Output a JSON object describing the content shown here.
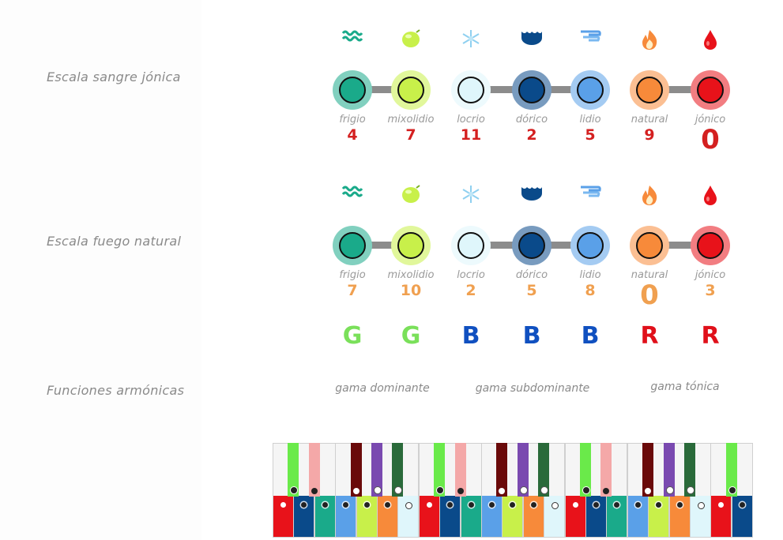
{
  "rows": [
    {
      "label": "Escala sangre jónica"
    },
    {
      "label": "Escala fuego natural"
    },
    {
      "label": "Funciones armónicas"
    }
  ],
  "modes": [
    {
      "name": "frigio",
      "icon": "water-waves-icon",
      "color": "#1aaa8a"
    },
    {
      "name": "mixolidio",
      "icon": "lime-icon",
      "color": "#c8f04a"
    },
    {
      "name": "locrio",
      "icon": "snowflake-icon",
      "color": "#dff6fb"
    },
    {
      "name": "dórico",
      "icon": "sea-icon",
      "color": "#0a4a8a"
    },
    {
      "name": "lidio",
      "icon": "wind-icon",
      "color": "#5aa0e8"
    },
    {
      "name": "natural",
      "icon": "fire-icon",
      "color": "#f78a3a"
    },
    {
      "name": "jónico",
      "icon": "blood-drop-icon",
      "color": "#e8121a"
    }
  ],
  "scale1": {
    "numbers": [
      "4",
      "7",
      "11",
      "2",
      "5",
      "9",
      "0"
    ],
    "number_color": "#d42020",
    "highlight_index": 6
  },
  "scale2": {
    "numbers": [
      "7",
      "10",
      "2",
      "5",
      "8",
      "0",
      "3"
    ],
    "number_color": "#f0a050",
    "highlight_index": 5
  },
  "letters": [
    {
      "text": "G",
      "color": "#7ae05a"
    },
    {
      "text": "G",
      "color": "#7ae05a"
    },
    {
      "text": "B",
      "color": "#1050c0"
    },
    {
      "text": "B",
      "color": "#1050c0"
    },
    {
      "text": "B",
      "color": "#1050c0"
    },
    {
      "text": "R",
      "color": "#e0101a"
    },
    {
      "text": "R",
      "color": "#e0101a"
    }
  ],
  "gamas": [
    "gama dominante",
    "gama subdominante",
    "gama tónica"
  ],
  "keyboard": {
    "white_band_colors": [
      "#e8121a",
      "#0a4a8a",
      "#1aaa8a",
      "#5aa0e8",
      "#c8f04a",
      "#f78a3a",
      "#dff6fb"
    ],
    "black_colors": [
      "#6aea4a",
      "#f4a8a8",
      "#6a0a0a",
      "#7a4ab0",
      "#2a6a3a"
    ]
  }
}
